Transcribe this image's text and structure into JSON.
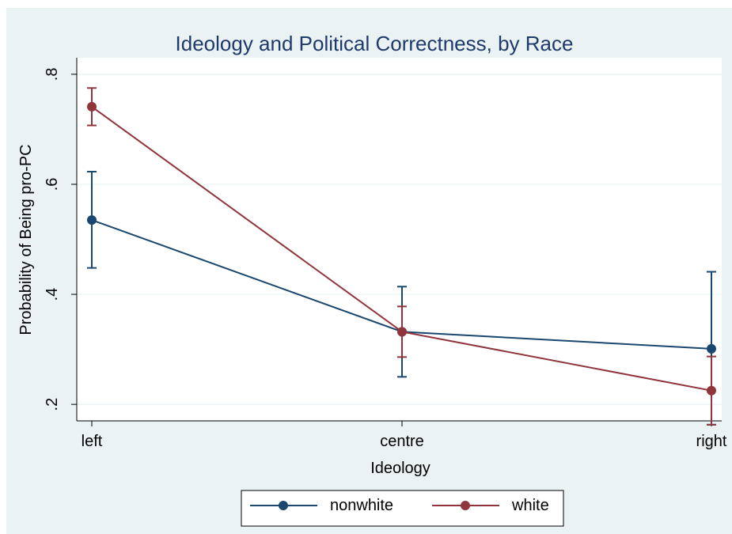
{
  "chart_data": {
    "type": "line",
    "title": "Ideology and Political Correctness, by Race",
    "xlabel": "Ideology",
    "ylabel": "Probability of Being pro-PC",
    "categories": [
      "left",
      "centre",
      "right"
    ],
    "ylim": [
      0.17,
      0.83
    ],
    "yticks": [
      0.2,
      0.4,
      0.6,
      0.8
    ],
    "ytick_labels": [
      ".2",
      ".4",
      ".6",
      ".8"
    ],
    "grid": true,
    "legend_position": "bottom",
    "series": [
      {
        "name": "nonwhite",
        "color": "#1a476f",
        "values": [
          0.535,
          0.332,
          0.301
        ],
        "ci_low": [
          0.448,
          0.25,
          0.163
        ],
        "ci_high": [
          0.623,
          0.414,
          0.441
        ]
      },
      {
        "name": "white",
        "color": "#90353b",
        "values": [
          0.741,
          0.332,
          0.225
        ],
        "ci_low": [
          0.707,
          0.286,
          0.163
        ],
        "ci_high": [
          0.775,
          0.378,
          0.287
        ]
      }
    ]
  }
}
